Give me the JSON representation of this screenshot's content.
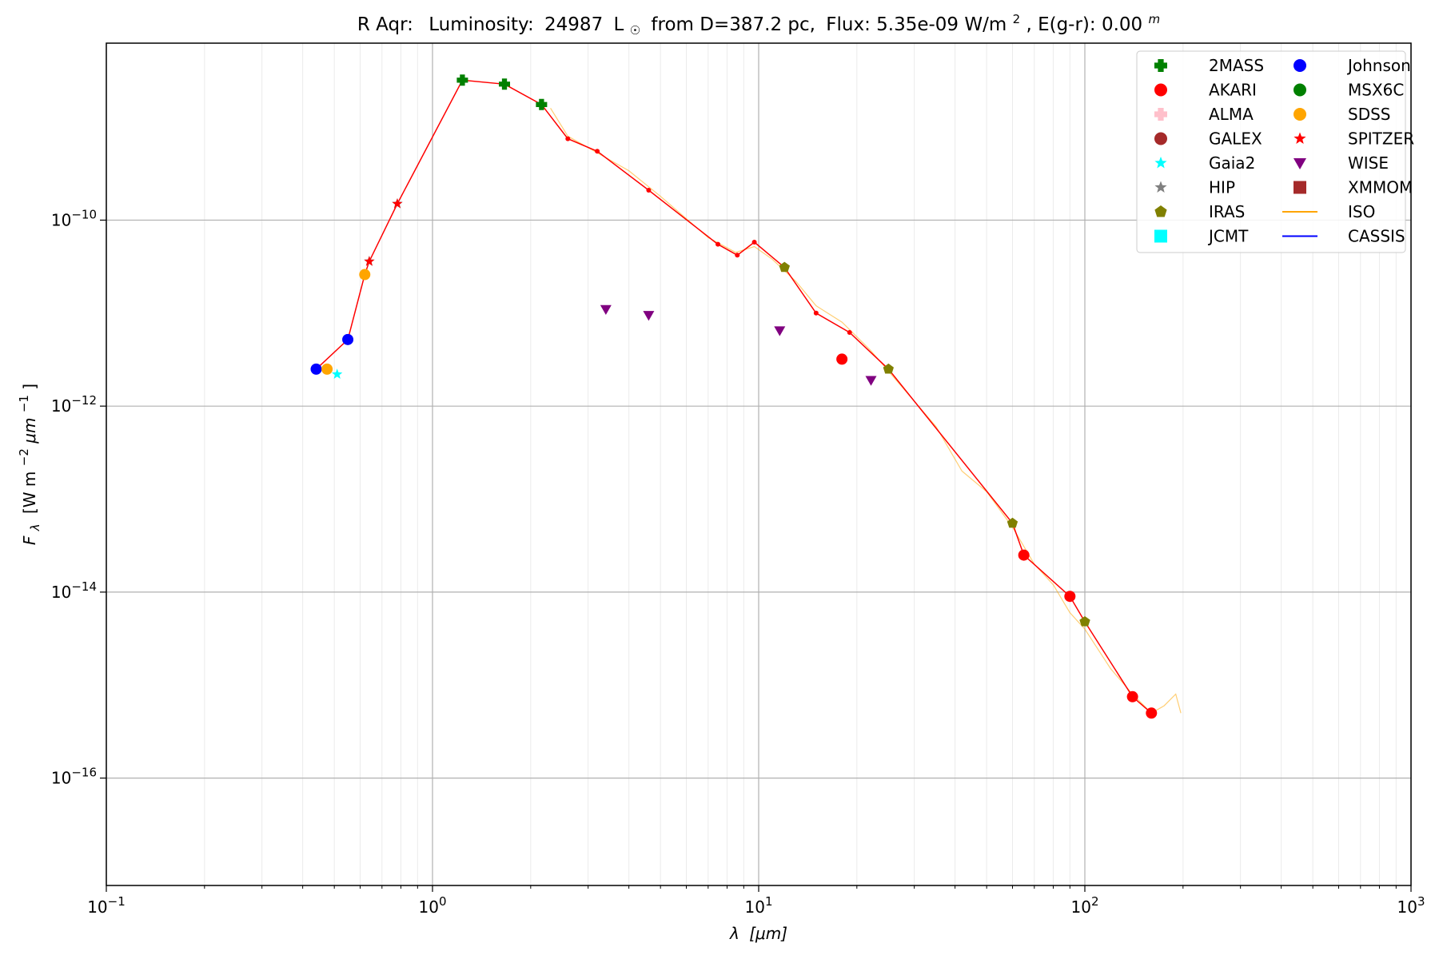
{
  "chart_data": {
    "type": "scatter",
    "title": {
      "star": "R Aqr:",
      "luminosity_label": "Luminosity:",
      "luminosity_value": "24987",
      "luminosity_unit": "L",
      "distance_text": "from D=387.2 pc,",
      "flux_text": "Flux: 5.35e-09 W/m",
      "flux_exponent": "2",
      "extinction_text": ", E(g-r): 0.00",
      "extinction_unit": "m"
    },
    "xlabel": {
      "symbol": "λ",
      "unit": "[μm]"
    },
    "ylabel": {
      "symbol": "F",
      "subscript": "λ",
      "unit": "[W m",
      "exp1": "−2",
      "mid": "μm",
      "exp2": "−1",
      "close": "]"
    },
    "xscale": "log",
    "yscale": "log",
    "xlim": [
      0.1,
      1000
    ],
    "ylim": [
      7e-18,
      8e-09
    ],
    "x_ticks": [
      {
        "value": 0.1,
        "base": "10",
        "exp": "−1"
      },
      {
        "value": 1,
        "base": "10",
        "exp": "0"
      },
      {
        "value": 10,
        "base": "10",
        "exp": "1"
      },
      {
        "value": 100,
        "base": "10",
        "exp": "2"
      },
      {
        "value": 1000,
        "base": "10",
        "exp": "3"
      }
    ],
    "y_ticks": [
      {
        "value": 1e-10,
        "base": "10",
        "exp": "−10"
      },
      {
        "value": 1e-12,
        "base": "10",
        "exp": "−12"
      },
      {
        "value": 1e-14,
        "base": "10",
        "exp": "−14"
      },
      {
        "value": 1e-16,
        "base": "10",
        "exp": "−16"
      }
    ],
    "grid": true,
    "legend_position": "top-right",
    "legend_columns": 2,
    "legend": [
      {
        "name": "2MASS",
        "marker": "plus",
        "color": "#008000"
      },
      {
        "name": "AKARI",
        "marker": "circle",
        "color": "#ff0000"
      },
      {
        "name": "ALMA",
        "marker": "plus",
        "color": "#ffc0cb"
      },
      {
        "name": "GALEX",
        "marker": "circle",
        "color": "#a52a2a"
      },
      {
        "name": "Gaia2",
        "marker": "star",
        "color": "#00ffff"
      },
      {
        "name": "HIP",
        "marker": "star",
        "color": "#808080"
      },
      {
        "name": "IRAS",
        "marker": "pentagon",
        "color": "#808000"
      },
      {
        "name": "JCMT",
        "marker": "square",
        "color": "#00ffff"
      },
      {
        "name": "Johnson",
        "marker": "circle",
        "color": "#0000ff"
      },
      {
        "name": "MSX6C",
        "marker": "circle",
        "color": "#008000"
      },
      {
        "name": "SDSS",
        "marker": "circle",
        "color": "#ffa500"
      },
      {
        "name": "SPITZER",
        "marker": "star",
        "color": "#ff0000"
      },
      {
        "name": "WISE",
        "marker": "triangle-down",
        "color": "#800080"
      },
      {
        "name": "XMMOM",
        "marker": "square",
        "color": "#a52a2a"
      },
      {
        "name": "ISO",
        "marker": "line",
        "color": "#ffa500"
      },
      {
        "name": "CASSIS",
        "marker": "line",
        "color": "#0000ff"
      }
    ],
    "series": [
      {
        "name": "2MASS",
        "marker": "plus",
        "color": "#008000",
        "points": [
          [
            1.235,
            3.2e-09
          ],
          [
            1.662,
            2.9e-09
          ],
          [
            2.159,
            1.75e-09
          ]
        ]
      },
      {
        "name": "AKARI",
        "marker": "circle",
        "color": "#ff0000",
        "points": [
          [
            18,
            3.2e-12
          ],
          [
            65,
            2.5e-14
          ],
          [
            90,
            9e-15
          ],
          [
            140,
            7.5e-16
          ],
          [
            160,
            5e-16
          ]
        ]
      },
      {
        "name": "Gaia2",
        "marker": "star",
        "color": "#00ffff",
        "points": [
          [
            0.51,
            2.2e-12
          ],
          [
            0.64,
            3.6e-11
          ],
          [
            0.78,
            1.5e-10
          ]
        ]
      },
      {
        "name": "IRAS",
        "marker": "pentagon",
        "color": "#808000",
        "points": [
          [
            12,
            3.1e-11
          ],
          [
            25,
            2.5e-12
          ],
          [
            60,
            5.5e-14
          ],
          [
            100,
            4.8e-15
          ]
        ]
      },
      {
        "name": "Johnson",
        "marker": "circle",
        "color": "#0000ff",
        "points": [
          [
            0.44,
            2.5e-12
          ],
          [
            0.55,
            5.2e-12
          ]
        ]
      },
      {
        "name": "SDSS",
        "marker": "circle",
        "color": "#ffa500",
        "points": [
          [
            0.475,
            2.5e-12
          ],
          [
            0.62,
            2.6e-11
          ]
        ]
      },
      {
        "name": "SPITZER",
        "marker": "star",
        "color": "#ff0000",
        "points": [
          [
            0.78,
            1.5e-10
          ],
          [
            0.64,
            3.6e-11
          ]
        ]
      },
      {
        "name": "WISE",
        "marker": "triangle-down",
        "color": "#800080",
        "points": [
          [
            3.4,
            1.1e-11
          ],
          [
            4.6,
            9.5e-12
          ],
          [
            11.6,
            6.5e-12
          ],
          [
            22.1,
            1.9e-12
          ]
        ]
      }
    ],
    "model_line": {
      "color": "#ff0000",
      "points": [
        [
          0.44,
          2.5e-12
        ],
        [
          0.55,
          5.2e-12
        ],
        [
          0.62,
          2.6e-11
        ],
        [
          0.64,
          3.6e-11
        ],
        [
          0.78,
          1.5e-10
        ],
        [
          1.235,
          3.2e-09
        ],
        [
          1.662,
          2.9e-09
        ],
        [
          2.159,
          1.75e-09
        ],
        [
          2.6,
          7.5e-10
        ],
        [
          3.2,
          5.5e-10
        ],
        [
          4.6,
          2.1e-10
        ],
        [
          7.5,
          5.5e-11
        ],
        [
          8.6,
          4.2e-11
        ],
        [
          9.7,
          5.8e-11
        ],
        [
          12,
          3.1e-11
        ],
        [
          15,
          1e-11
        ],
        [
          19,
          6.2e-12
        ],
        [
          25,
          2.5e-12
        ],
        [
          60,
          5.5e-14
        ],
        [
          65,
          2.5e-14
        ],
        [
          90,
          9e-15
        ],
        [
          100,
          4.8e-15
        ],
        [
          140,
          7.5e-16
        ],
        [
          160,
          5e-16
        ]
      ]
    },
    "iso_spectrum": {
      "name": "ISO",
      "color": "#ffa500",
      "points": [
        [
          2.3,
          1.6e-09
        ],
        [
          2.6,
          8e-10
        ],
        [
          3.2,
          5.3e-10
        ],
        [
          4.0,
          3.4e-10
        ],
        [
          5.0,
          1.8e-10
        ],
        [
          7.0,
          6.5e-11
        ],
        [
          8.5,
          4.5e-11
        ],
        [
          9.7,
          5.2e-11
        ],
        [
          11,
          3.8e-11
        ],
        [
          13,
          2.2e-11
        ],
        [
          15,
          1.2e-11
        ],
        [
          18,
          8e-12
        ],
        [
          22,
          4e-12
        ],
        [
          28,
          1.5e-12
        ],
        [
          35,
          6e-13
        ],
        [
          42,
          2e-13
        ],
        [
          50,
          1.2e-13
        ],
        [
          60,
          5e-14
        ],
        [
          70,
          2e-14
        ],
        [
          80,
          1.2e-14
        ],
        [
          90,
          6e-15
        ],
        [
          100,
          4e-15
        ],
        [
          120,
          1.5e-15
        ],
        [
          140,
          8e-16
        ],
        [
          160,
          5e-16
        ],
        [
          175,
          6e-16
        ],
        [
          190,
          8e-16
        ],
        [
          197,
          5e-16
        ]
      ]
    },
    "cassis_spectrum": {
      "name": "CASSIS",
      "color": "#0000ff",
      "points": []
    }
  }
}
